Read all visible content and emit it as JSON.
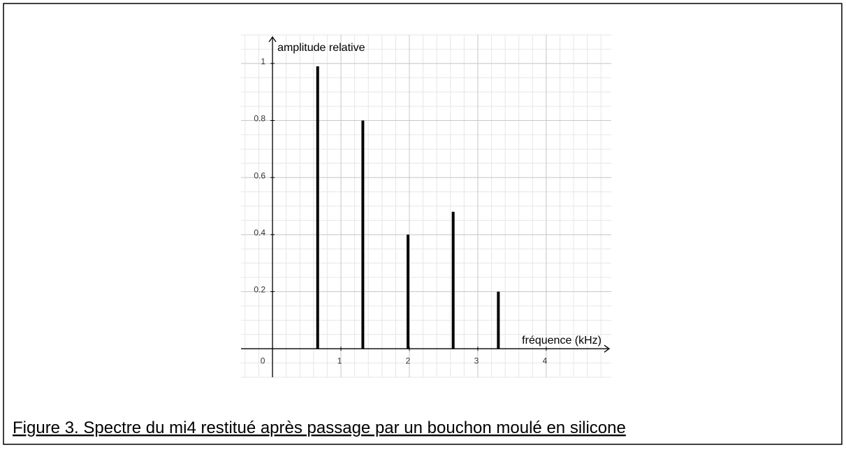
{
  "chart_data": {
    "type": "bar",
    "x_label": "fréquence (kHz)",
    "y_label": "amplitude relative",
    "caption": "Figure 3. Spectre du mi4 restitué après passage par un bouchon moulé en silicone",
    "x": [
      0.66,
      1.32,
      1.98,
      2.64,
      3.3
    ],
    "values": [
      0.99,
      0.8,
      0.4,
      0.48,
      0.2
    ],
    "color": "#000000",
    "xlim": [
      -0.46,
      4.95
    ],
    "ylim": [
      -0.1,
      1.1
    ],
    "xticks": [
      0,
      1,
      2,
      3,
      4
    ],
    "yticks": [
      0.2,
      0.4,
      0.6,
      0.8,
      1
    ],
    "grid": true
  }
}
